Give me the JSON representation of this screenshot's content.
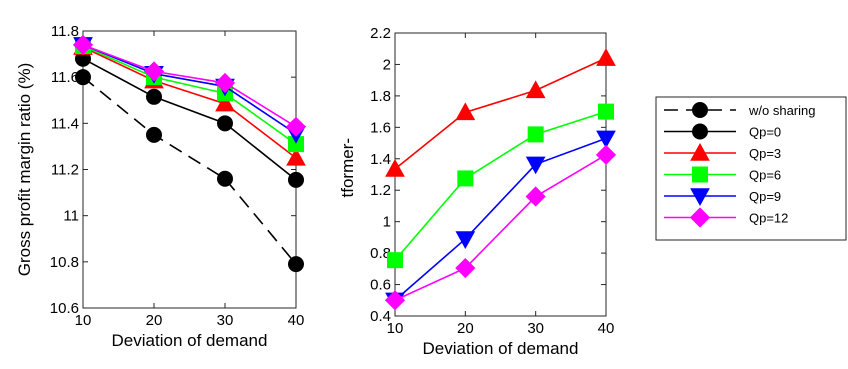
{
  "chart_data": [
    {
      "type": "line",
      "xlabel": "Deviation of demand",
      "ylabel": "Gross profit margin ratio (%)",
      "x": [
        10,
        20,
        30,
        40
      ],
      "xlim": [
        10,
        40
      ],
      "ylim": [
        10.6,
        11.8
      ],
      "xticks": [
        "10",
        "20",
        "30",
        "40"
      ],
      "yticks": [
        "10.6",
        "10.8",
        "11",
        "11.2",
        "11.4",
        "11.6",
        "11.8"
      ],
      "grid": false,
      "series": [
        {
          "name": "w/o sharing",
          "values": [
            11.6,
            11.35,
            11.16,
            10.79
          ],
          "color": "#000000",
          "marker": "circle",
          "dash": true
        },
        {
          "name": "Qp=0",
          "values": [
            11.68,
            11.515,
            11.4,
            11.155
          ],
          "color": "#000000",
          "marker": "circle",
          "dash": false
        },
        {
          "name": "Qp=3",
          "values": [
            11.73,
            11.585,
            11.485,
            11.25
          ],
          "color": "#ff0000",
          "marker": "triangle-up",
          "dash": false
        },
        {
          "name": "Qp=6",
          "values": [
            11.735,
            11.6,
            11.53,
            11.31
          ],
          "color": "#00ff00",
          "marker": "square",
          "dash": false
        },
        {
          "name": "Qp=9",
          "values": [
            11.74,
            11.615,
            11.56,
            11.355
          ],
          "color": "#0000ff",
          "marker": "triangle-down",
          "dash": false
        },
        {
          "name": "Qp=12",
          "values": [
            11.74,
            11.625,
            11.575,
            11.385
          ],
          "color": "#ff00ff",
          "marker": "diamond",
          "dash": false
        }
      ]
    },
    {
      "type": "line",
      "xlabel": "Deviation of demand",
      "ylabel": "Turnover of platformer-owned trucks",
      "x": [
        10,
        20,
        30,
        40
      ],
      "xlim": [
        10,
        40
      ],
      "ylim": [
        0.4,
        2.2
      ],
      "xticks": [
        "10",
        "20",
        "30",
        "40"
      ],
      "yticks": [
        "0.4",
        "0.6",
        "0.8",
        "1",
        "1.2",
        "1.4",
        "1.6",
        "1.8",
        "2",
        "2.2"
      ],
      "grid": false,
      "series": [
        {
          "name": "Qp=3",
          "values": [
            1.335,
            1.695,
            1.835,
            2.04
          ],
          "color": "#ff0000",
          "marker": "triangle-up",
          "dash": false
        },
        {
          "name": "Qp=6",
          "values": [
            0.755,
            1.275,
            1.555,
            1.7
          ],
          "color": "#00ff00",
          "marker": "square",
          "dash": false
        },
        {
          "name": "Qp=9",
          "values": [
            0.5,
            0.89,
            1.365,
            1.53
          ],
          "color": "#0000ff",
          "marker": "triangle-down",
          "dash": false
        },
        {
          "name": "Qp=12",
          "values": [
            0.5,
            0.705,
            1.16,
            1.425
          ],
          "color": "#ff00ff",
          "marker": "diamond",
          "dash": false
        }
      ]
    }
  ],
  "legend": {
    "placement": "right",
    "items": [
      {
        "label": "w/o sharing",
        "color": "#000000",
        "marker": "circle",
        "dash": true
      },
      {
        "label": "Qp=0",
        "color": "#000000",
        "marker": "circle",
        "dash": false
      },
      {
        "label": "Qp=3",
        "color": "#ff0000",
        "marker": "triangle-up",
        "dash": false
      },
      {
        "label": "Qp=6",
        "color": "#00ff00",
        "marker": "square",
        "dash": false
      },
      {
        "label": "Qp=9",
        "color": "#0000ff",
        "marker": "triangle-down",
        "dash": false
      },
      {
        "label": "Qp=12",
        "color": "#ff00ff",
        "marker": "diamond",
        "dash": false
      }
    ]
  }
}
